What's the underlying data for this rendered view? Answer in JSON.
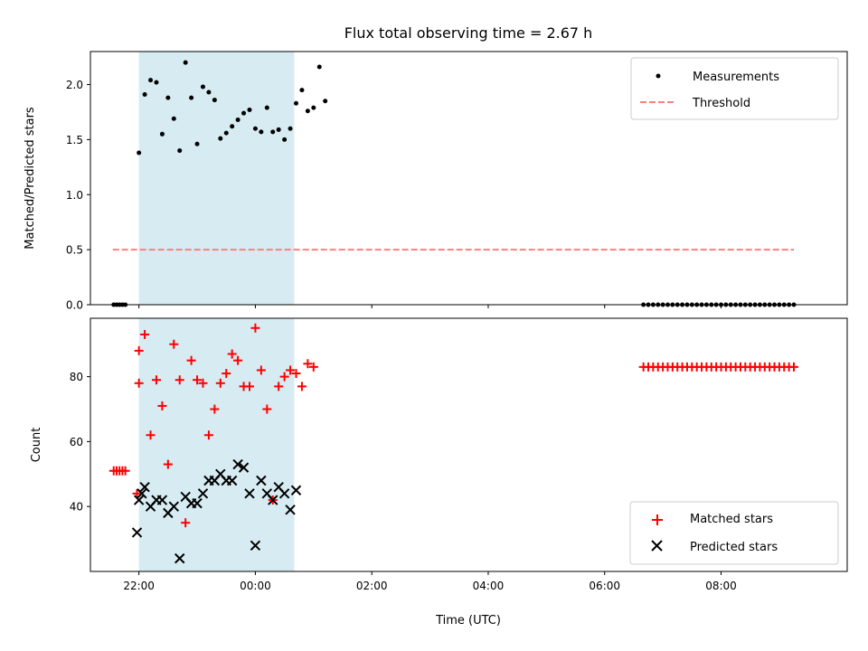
{
  "colors": {
    "shade": "#add8e6",
    "measurement": "#000000",
    "threshold": "#ff7f7f",
    "matched": "#ff0000",
    "predicted": "#000000"
  },
  "chart_data": [
    {
      "type": "scatter",
      "title": "Flux total observing time = 2.67 h",
      "xlabel": "",
      "ylabel": "Matched/Predicted stars",
      "xlim": [
        "21:10",
        "10:10"
      ],
      "ylim": [
        0,
        2.3
      ],
      "yticks": [
        "0.0",
        "0.5",
        "1.0",
        "1.5",
        "2.0"
      ],
      "shaded_interval": [
        "22:00",
        "00:40"
      ],
      "legend_position": "upper right",
      "legend": [
        "Measurements",
        "Threshold"
      ],
      "threshold": {
        "name": "Threshold",
        "y": 0.5,
        "x_range": [
          "21:33",
          "09:15"
        ]
      },
      "series": [
        {
          "name": "Measurements",
          "points": [
            [
              "21:34",
              0
            ],
            [
              "21:37",
              0
            ],
            [
              "21:40",
              0
            ],
            [
              "21:43",
              0
            ],
            [
              "21:46",
              0
            ],
            [
              "22:00",
              1.38
            ],
            [
              "22:06",
              1.91
            ],
            [
              "22:12",
              2.04
            ],
            [
              "22:18",
              2.02
            ],
            [
              "22:24",
              1.55
            ],
            [
              "22:30",
              1.88
            ],
            [
              "22:36",
              1.69
            ],
            [
              "22:42",
              1.4
            ],
            [
              "22:48",
              2.2
            ],
            [
              "22:54",
              1.88
            ],
            [
              "23:00",
              1.46
            ],
            [
              "23:06",
              1.98
            ],
            [
              "23:12",
              1.93
            ],
            [
              "23:18",
              1.86
            ],
            [
              "23:24",
              1.51
            ],
            [
              "23:30",
              1.56
            ],
            [
              "23:36",
              1.62
            ],
            [
              "23:42",
              1.68
            ],
            [
              "23:48",
              1.74
            ],
            [
              "23:54",
              1.77
            ],
            [
              "00:00",
              1.6
            ],
            [
              "00:06",
              1.57
            ],
            [
              "00:12",
              1.79
            ],
            [
              "00:18",
              1.57
            ],
            [
              "00:24",
              1.59
            ],
            [
              "00:30",
              1.5
            ],
            [
              "00:36",
              1.6
            ],
            [
              "00:42",
              1.83
            ],
            [
              "00:48",
              1.95
            ],
            [
              "00:54",
              1.76
            ],
            [
              "01:00",
              1.79
            ],
            [
              "01:06",
              2.16
            ],
            [
              "01:12",
              1.85
            ],
            [
              "06:40",
              0
            ],
            [
              "06:45",
              0
            ],
            [
              "06:50",
              0
            ],
            [
              "06:55",
              0
            ],
            [
              "07:00",
              0
            ],
            [
              "07:05",
              0
            ],
            [
              "07:10",
              0
            ],
            [
              "07:15",
              0
            ],
            [
              "07:20",
              0
            ],
            [
              "07:25",
              0
            ],
            [
              "07:30",
              0
            ],
            [
              "07:35",
              0
            ],
            [
              "07:40",
              0
            ],
            [
              "07:45",
              0
            ],
            [
              "07:50",
              0
            ],
            [
              "07:55",
              0
            ],
            [
              "08:00",
              0
            ],
            [
              "08:05",
              0
            ],
            [
              "08:10",
              0
            ],
            [
              "08:15",
              0
            ],
            [
              "08:20",
              0
            ],
            [
              "08:25",
              0
            ],
            [
              "08:30",
              0
            ],
            [
              "08:35",
              0
            ],
            [
              "08:40",
              0
            ],
            [
              "08:45",
              0
            ],
            [
              "08:50",
              0
            ],
            [
              "08:55",
              0
            ],
            [
              "09:00",
              0
            ],
            [
              "09:05",
              0
            ],
            [
              "09:10",
              0
            ],
            [
              "09:15",
              0
            ]
          ]
        }
      ]
    },
    {
      "type": "scatter",
      "title": "",
      "xlabel": "Time (UTC)",
      "ylabel": "Count",
      "xlim": [
        "21:10",
        "10:10"
      ],
      "ylim": [
        20,
        98
      ],
      "yticks": [
        "40",
        "60",
        "80"
      ],
      "xticks": [
        "22:00",
        "00:00",
        "02:00",
        "04:00",
        "06:00",
        "08:00"
      ],
      "shaded_interval": [
        "22:00",
        "00:40"
      ],
      "legend_position": "lower right",
      "legend": [
        "Matched stars",
        "Predicted stars"
      ],
      "series": [
        {
          "name": "Matched stars",
          "marker": "plus",
          "points": [
            [
              "21:34",
              51
            ],
            [
              "21:37",
              51
            ],
            [
              "21:40",
              51
            ],
            [
              "21:43",
              51
            ],
            [
              "21:46",
              51
            ],
            [
              "21:58",
              44
            ],
            [
              "22:00",
              78
            ],
            [
              "22:00",
              88
            ],
            [
              "22:06",
              93
            ],
            [
              "22:12",
              62
            ],
            [
              "22:18",
              79
            ],
            [
              "22:24",
              71
            ],
            [
              "22:30",
              53
            ],
            [
              "22:36",
              90
            ],
            [
              "22:42",
              79
            ],
            [
              "22:48",
              35
            ],
            [
              "22:54",
              85
            ],
            [
              "23:00",
              79
            ],
            [
              "23:06",
              78
            ],
            [
              "23:12",
              62
            ],
            [
              "23:18",
              70
            ],
            [
              "23:24",
              78
            ],
            [
              "23:30",
              81
            ],
            [
              "23:36",
              87
            ],
            [
              "23:42",
              85
            ],
            [
              "23:48",
              77
            ],
            [
              "23:54",
              77
            ],
            [
              "00:00",
              95
            ],
            [
              "00:06",
              82
            ],
            [
              "00:12",
              70
            ],
            [
              "00:18",
              42
            ],
            [
              "00:24",
              77
            ],
            [
              "00:30",
              80
            ],
            [
              "00:36",
              82
            ],
            [
              "00:42",
              81
            ],
            [
              "00:48",
              77
            ],
            [
              "00:54",
              84
            ],
            [
              "01:00",
              83
            ],
            [
              "06:40",
              83
            ],
            [
              "06:45",
              83
            ],
            [
              "06:50",
              83
            ],
            [
              "06:55",
              83
            ],
            [
              "07:00",
              83
            ],
            [
              "07:05",
              83
            ],
            [
              "07:10",
              83
            ],
            [
              "07:15",
              83
            ],
            [
              "07:20",
              83
            ],
            [
              "07:25",
              83
            ],
            [
              "07:30",
              83
            ],
            [
              "07:35",
              83
            ],
            [
              "07:40",
              83
            ],
            [
              "07:45",
              83
            ],
            [
              "07:50",
              83
            ],
            [
              "07:55",
              83
            ],
            [
              "08:00",
              83
            ],
            [
              "08:05",
              83
            ],
            [
              "08:10",
              83
            ],
            [
              "08:15",
              83
            ],
            [
              "08:20",
              83
            ],
            [
              "08:25",
              83
            ],
            [
              "08:30",
              83
            ],
            [
              "08:35",
              83
            ],
            [
              "08:40",
              83
            ],
            [
              "08:45",
              83
            ],
            [
              "08:50",
              83
            ],
            [
              "08:55",
              83
            ],
            [
              "09:00",
              83
            ],
            [
              "09:05",
              83
            ],
            [
              "09:10",
              83
            ],
            [
              "09:15",
              83
            ]
          ]
        },
        {
          "name": "Predicted stars",
          "marker": "x",
          "points": [
            [
              "21:58",
              32
            ],
            [
              "22:00",
              42
            ],
            [
              "22:03",
              44
            ],
            [
              "22:06",
              46
            ],
            [
              "22:12",
              40
            ],
            [
              "22:18",
              42
            ],
            [
              "22:24",
              42
            ],
            [
              "22:30",
              38
            ],
            [
              "22:36",
              40
            ],
            [
              "22:42",
              24
            ],
            [
              "22:48",
              43
            ],
            [
              "22:54",
              41
            ],
            [
              "23:00",
              41
            ],
            [
              "23:06",
              44
            ],
            [
              "23:12",
              48
            ],
            [
              "23:18",
              48
            ],
            [
              "23:24",
              50
            ],
            [
              "23:30",
              48
            ],
            [
              "23:36",
              48
            ],
            [
              "23:42",
              53
            ],
            [
              "23:48",
              52
            ],
            [
              "23:54",
              44
            ],
            [
              "00:00",
              28
            ],
            [
              "00:06",
              48
            ],
            [
              "00:12",
              44
            ],
            [
              "00:18",
              42
            ],
            [
              "00:24",
              46
            ],
            [
              "00:30",
              44
            ],
            [
              "00:36",
              39
            ],
            [
              "00:42",
              45
            ]
          ]
        }
      ]
    }
  ]
}
